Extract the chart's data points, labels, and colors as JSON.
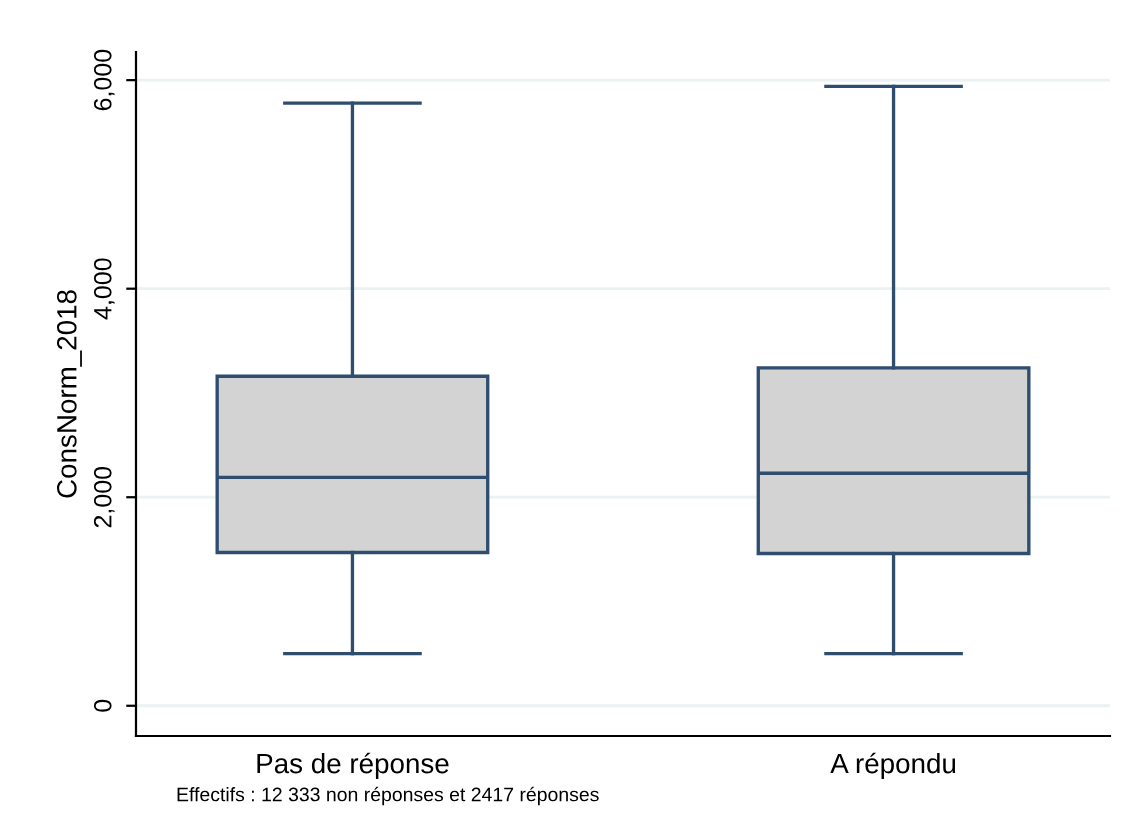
{
  "chart_data": {
    "type": "box",
    "ylabel": "ConsNorm_2018",
    "categories": [
      "Pas de réponse",
      "A répondu"
    ],
    "boxes": [
      {
        "low": 500,
        "q1": 1470,
        "median": 2190,
        "q3": 3160,
        "high": 5780
      },
      {
        "low": 500,
        "q1": 1460,
        "median": 2230,
        "q3": 3240,
        "high": 5940
      }
    ],
    "color": "#d3d3d3",
    "ylim": [
      -290,
      6270
    ],
    "yticks": [
      {
        "value": 0,
        "label": "0"
      },
      {
        "value": 2000,
        "label": "2,000"
      },
      {
        "value": 4000,
        "label": "4,000"
      },
      {
        "value": 6000,
        "label": "6,000"
      }
    ],
    "grid": "y",
    "annotations": [
      "Effectifs : 12 333 non réponses et 2417 réponses"
    ]
  }
}
